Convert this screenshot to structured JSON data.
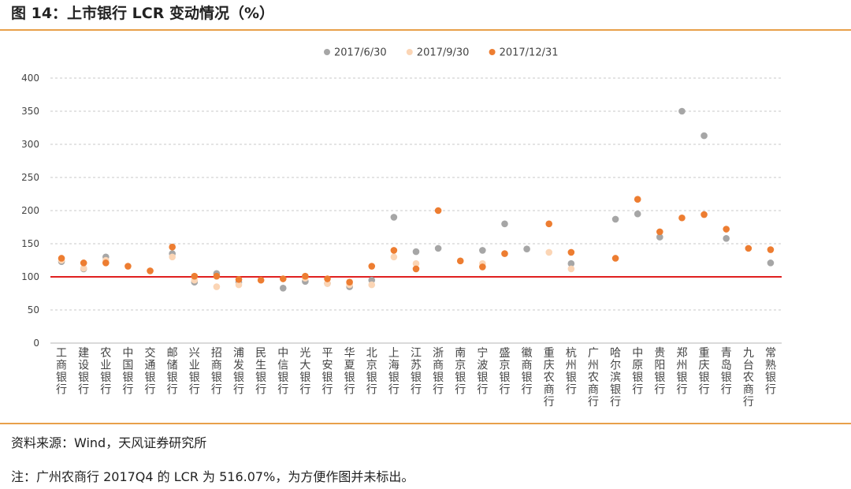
{
  "header": {
    "title": "图 14：上市银行 LCR 变动情况（%）"
  },
  "footer": {
    "source": "资料来源：Wind，天风证券研究所",
    "note": "注：广州农商行 2017Q4 的 LCR 为 516.07%，为方便作图并未标出。"
  },
  "chart_data": {
    "type": "scatter",
    "title": "",
    "xlabel": "",
    "ylabel": "",
    "ylim": [
      0,
      400
    ],
    "yticks": [
      0,
      50,
      100,
      150,
      200,
      250,
      300,
      350,
      400
    ],
    "grid": "dashed horizontal",
    "legend_position": "top",
    "reference_line": {
      "value": 100,
      "color": "#e02020"
    },
    "categories": [
      "工商银行",
      "建设银行",
      "农业银行",
      "中国银行",
      "交通银行",
      "邮储银行",
      "兴业银行",
      "招商银行",
      "浦发银行",
      "民生银行",
      "中信银行",
      "光大银行",
      "平安银行",
      "华夏银行",
      "北京银行",
      "上海银行",
      "江苏银行",
      "浙商银行",
      "南京银行",
      "宁波银行",
      "盛京银行",
      "徽商银行",
      "重庆农商行",
      "杭州银行",
      "广州农商行",
      "哈尔滨银行",
      "中原银行",
      "贵阳银行",
      "郑州银行",
      "重庆银行",
      "青岛银行",
      "九台农商行",
      "常熟银行"
    ],
    "series": [
      {
        "name": "2017/6/30",
        "color": "#a6a6a6",
        "values": [
          123,
          112,
          130,
          null,
          null,
          135,
          92,
          105,
          92,
          null,
          83,
          93,
          90,
          85,
          95,
          190,
          138,
          143,
          null,
          140,
          180,
          142,
          null,
          120,
          null,
          187,
          195,
          160,
          350,
          313,
          158,
          null,
          121
        ]
      },
      {
        "name": "2017/9/30",
        "color": "#fbd5b5",
        "values": [
          125,
          113,
          125,
          null,
          null,
          130,
          95,
          85,
          88,
          null,
          null,
          98,
          90,
          88,
          88,
          130,
          120,
          null,
          null,
          120,
          null,
          null,
          137,
          112,
          null,
          null,
          null,
          null,
          null,
          null,
          null,
          null,
          null
        ]
      },
      {
        "name": "2017/12/31",
        "color": "#ed7d31",
        "values": [
          128,
          121,
          121,
          116,
          109,
          145,
          101,
          101,
          96,
          95,
          97,
          101,
          97,
          92,
          116,
          140,
          112,
          200,
          124,
          115,
          135,
          null,
          180,
          137,
          null,
          128,
          217,
          168,
          189,
          194,
          172,
          143,
          141
        ]
      }
    ]
  }
}
